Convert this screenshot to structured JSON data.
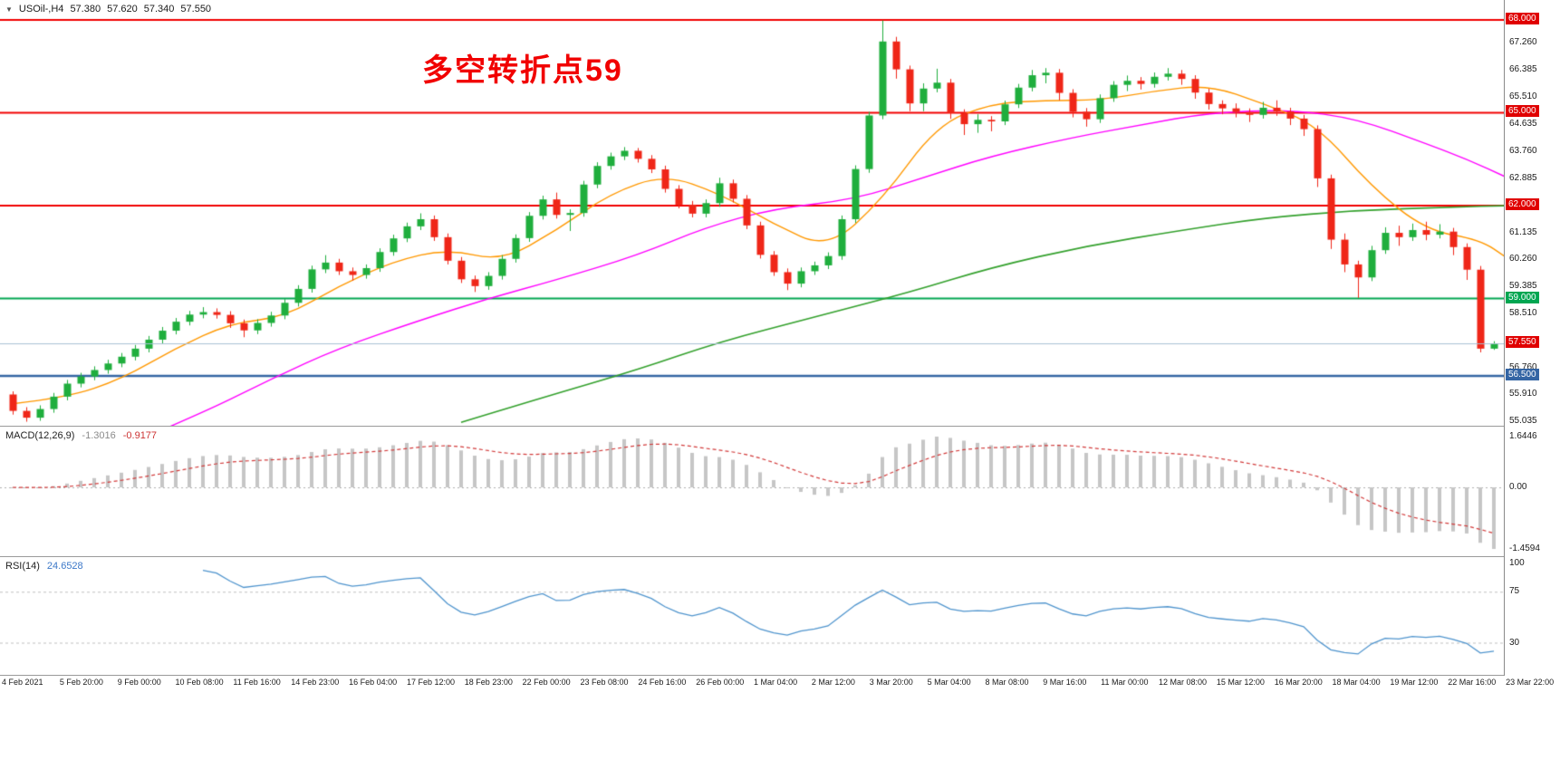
{
  "header": {
    "dropdown_icon": "▼",
    "symbol": "USOil-,H4",
    "open": "57.380",
    "high": "57.620",
    "low": "57.340",
    "close": "57.550"
  },
  "annotation": {
    "text": "多空转折点59",
    "color": "#f10000"
  },
  "chart_data": {
    "type": "candlestick",
    "title": "USOil- H4",
    "timeframe": "H4",
    "ylim": [
      54.89,
      68.64
    ],
    "x_labels": [
      "4 Feb 2021",
      "5 Feb 20:00",
      "9 Feb 00:00",
      "10 Feb 08:00",
      "11 Feb 16:00",
      "14 Feb 23:00",
      "16 Feb 04:00",
      "17 Feb 12:00",
      "18 Feb 23:00",
      "22 Feb 00:00",
      "23 Feb 08:00",
      "24 Feb 16:00",
      "26 Feb 00:00",
      "1 Mar 04:00",
      "2 Mar 12:00",
      "3 Mar 20:00",
      "5 Mar 04:00",
      "8 Mar 08:00",
      "9 Mar 16:00",
      "11 Mar 00:00",
      "12 Mar 08:00",
      "15 Mar 12:00",
      "16 Mar 20:00",
      "18 Mar 04:00",
      "19 Mar 12:00",
      "22 Mar 16:00",
      "23 Mar 22:00"
    ],
    "y_axis": {
      "tick_labels": [
        "67.260",
        "66.385",
        "65.510",
        "64.635",
        "63.760",
        "62.885",
        "61.135",
        "60.260",
        "59.385",
        "58.510",
        "56.760",
        "55.910",
        "55.035"
      ],
      "badges": [
        {
          "label": "68.000",
          "color": "#e00000"
        },
        {
          "label": "65.000",
          "color": "#e00000"
        },
        {
          "label": "62.000",
          "color": "#e00000"
        },
        {
          "label": "59.000",
          "color": "#00a651"
        },
        {
          "label": "57.550",
          "color": "#e00000"
        },
        {
          "label": "56.500",
          "color": "#3465a4"
        }
      ]
    },
    "candles": [
      [
        55.9,
        56.0,
        55.25,
        55.37
      ],
      [
        55.37,
        55.49,
        55.02,
        55.15
      ],
      [
        55.15,
        55.55,
        55.05,
        55.43
      ],
      [
        55.43,
        55.95,
        55.31,
        55.83
      ],
      [
        55.83,
        56.37,
        55.71,
        56.25
      ],
      [
        56.25,
        56.6,
        56.13,
        56.48
      ],
      [
        56.48,
        56.81,
        56.36,
        56.69
      ],
      [
        56.69,
        57.02,
        56.57,
        56.9
      ],
      [
        56.9,
        57.24,
        56.78,
        57.12
      ],
      [
        57.12,
        57.5,
        57.0,
        57.38
      ],
      [
        57.38,
        57.79,
        57.26,
        57.67
      ],
      [
        57.67,
        58.08,
        57.55,
        57.96
      ],
      [
        57.96,
        58.37,
        57.84,
        58.25
      ],
      [
        58.25,
        58.6,
        58.13,
        58.48
      ],
      [
        58.48,
        58.72,
        58.36,
        58.56
      ],
      [
        58.56,
        58.68,
        58.35,
        58.47
      ],
      [
        58.47,
        58.59,
        58.05,
        58.2
      ],
      [
        58.2,
        58.32,
        57.75,
        57.97
      ],
      [
        57.97,
        58.33,
        57.85,
        58.21
      ],
      [
        58.21,
        58.57,
        58.09,
        58.45
      ],
      [
        58.45,
        58.98,
        58.33,
        58.86
      ],
      [
        58.86,
        59.43,
        58.74,
        59.31
      ],
      [
        59.31,
        60.06,
        59.19,
        59.94
      ],
      [
        59.94,
        60.4,
        59.82,
        60.16
      ],
      [
        60.16,
        60.28,
        59.76,
        59.88
      ],
      [
        59.88,
        60.0,
        59.58,
        59.76
      ],
      [
        59.76,
        60.1,
        59.64,
        59.98
      ],
      [
        59.98,
        60.62,
        59.86,
        60.5
      ],
      [
        60.5,
        61.06,
        60.38,
        60.94
      ],
      [
        60.94,
        61.45,
        60.82,
        61.33
      ],
      [
        61.33,
        61.75,
        61.21,
        61.56
      ],
      [
        61.56,
        61.68,
        60.86,
        60.98
      ],
      [
        60.98,
        61.1,
        60.1,
        60.22
      ],
      [
        60.22,
        60.34,
        59.5,
        59.62
      ],
      [
        59.62,
        59.74,
        59.21,
        59.4
      ],
      [
        59.4,
        59.85,
        59.28,
        59.73
      ],
      [
        59.73,
        60.4,
        59.61,
        60.28
      ],
      [
        60.28,
        61.07,
        60.16,
        60.95
      ],
      [
        60.95,
        61.79,
        60.83,
        61.67
      ],
      [
        61.67,
        62.32,
        61.55,
        62.2
      ],
      [
        62.2,
        62.42,
        61.58,
        61.7
      ],
      [
        61.7,
        61.88,
        61.18,
        61.76
      ],
      [
        61.76,
        62.8,
        61.64,
        62.68
      ],
      [
        62.68,
        63.4,
        62.56,
        63.28
      ],
      [
        63.28,
        63.71,
        63.16,
        63.59
      ],
      [
        63.59,
        63.89,
        63.47,
        63.77
      ],
      [
        63.77,
        63.86,
        63.39,
        63.51
      ],
      [
        63.51,
        63.63,
        63.05,
        63.17
      ],
      [
        63.17,
        63.29,
        62.42,
        62.54
      ],
      [
        62.54,
        62.66,
        61.91,
        62.03
      ],
      [
        62.03,
        62.15,
        61.62,
        61.74
      ],
      [
        61.74,
        62.2,
        61.62,
        62.08
      ],
      [
        62.08,
        62.9,
        61.96,
        62.72
      ],
      [
        62.72,
        62.84,
        62.1,
        62.22
      ],
      [
        62.22,
        62.34,
        61.24,
        61.36
      ],
      [
        61.36,
        61.48,
        60.29,
        60.41
      ],
      [
        60.41,
        60.53,
        59.73,
        59.85
      ],
      [
        59.85,
        59.97,
        59.27,
        59.48
      ],
      [
        59.48,
        60.0,
        59.36,
        59.88
      ],
      [
        59.88,
        60.19,
        59.76,
        60.07
      ],
      [
        60.07,
        60.49,
        59.95,
        60.37
      ],
      [
        60.37,
        61.68,
        60.25,
        61.56
      ],
      [
        61.56,
        63.3,
        61.44,
        63.18
      ],
      [
        63.18,
        65.03,
        63.06,
        64.91
      ],
      [
        64.91,
        67.98,
        64.79,
        67.3
      ],
      [
        67.3,
        67.45,
        66.1,
        66.4
      ],
      [
        66.4,
        66.52,
        65.05,
        65.3
      ],
      [
        65.3,
        65.95,
        65.05,
        65.78
      ],
      [
        65.78,
        66.42,
        65.66,
        65.97
      ],
      [
        65.97,
        66.09,
        64.8,
        64.99
      ],
      [
        64.99,
        65.11,
        64.28,
        64.63
      ],
      [
        64.63,
        64.95,
        64.35,
        64.77
      ],
      [
        64.77,
        64.89,
        64.4,
        64.72
      ],
      [
        64.72,
        65.39,
        64.6,
        65.27
      ],
      [
        65.27,
        65.93,
        65.15,
        65.81
      ],
      [
        65.81,
        66.38,
        65.69,
        66.21
      ],
      [
        66.21,
        66.44,
        65.95,
        66.29
      ],
      [
        66.29,
        66.41,
        65.4,
        65.64
      ],
      [
        65.64,
        65.76,
        64.85,
        65.03
      ],
      [
        65.03,
        65.15,
        64.55,
        64.79
      ],
      [
        64.79,
        65.59,
        64.67,
        65.47
      ],
      [
        65.47,
        66.02,
        65.35,
        65.9
      ],
      [
        65.9,
        66.2,
        65.7,
        66.03
      ],
      [
        66.03,
        66.15,
        65.75,
        65.93
      ],
      [
        65.93,
        66.3,
        65.81,
        66.16
      ],
      [
        66.16,
        66.44,
        66.04,
        66.26
      ],
      [
        66.26,
        66.38,
        65.9,
        66.09
      ],
      [
        66.09,
        66.21,
        65.45,
        65.65
      ],
      [
        65.65,
        65.77,
        65.1,
        65.28
      ],
      [
        65.28,
        65.4,
        64.95,
        65.14
      ],
      [
        65.14,
        65.3,
        64.85,
        65.02
      ],
      [
        65.02,
        65.14,
        64.7,
        64.93
      ],
      [
        64.93,
        65.35,
        64.81,
        65.16
      ],
      [
        65.16,
        65.4,
        64.9,
        65.04
      ],
      [
        65.04,
        65.16,
        64.6,
        64.81
      ],
      [
        64.81,
        64.93,
        64.25,
        64.47
      ],
      [
        64.47,
        64.59,
        62.6,
        62.88
      ],
      [
        62.88,
        63.0,
        60.6,
        60.9
      ],
      [
        60.9,
        61.1,
        59.85,
        60.1
      ],
      [
        60.1,
        60.22,
        59.02,
        59.68
      ],
      [
        59.68,
        60.7,
        59.56,
        60.56
      ],
      [
        60.56,
        61.3,
        60.44,
        61.12
      ],
      [
        61.12,
        61.35,
        60.7,
        60.98
      ],
      [
        60.98,
        61.42,
        60.86,
        61.21
      ],
      [
        61.21,
        61.48,
        60.88,
        61.06
      ],
      [
        61.06,
        61.4,
        60.94,
        61.16
      ],
      [
        61.16,
        61.28,
        60.4,
        60.66
      ],
      [
        60.66,
        60.78,
        59.6,
        59.93
      ],
      [
        59.93,
        60.05,
        57.26,
        57.38
      ],
      [
        57.38,
        57.62,
        57.34,
        57.55
      ]
    ],
    "overlays": {
      "hlines": [
        {
          "price": 68.0,
          "label": "68.000",
          "color": "#f10000",
          "width": 2
        },
        {
          "price": 65.0,
          "label": "65.000",
          "color": "#f10000",
          "width": 2
        },
        {
          "price": 62.0,
          "label": "62.000",
          "color": "#f10000",
          "width": 2
        },
        {
          "price": 59.0,
          "label": "59.000",
          "color": "#00a651",
          "width": 2
        },
        {
          "price": 56.5,
          "label": "56.500",
          "color": "#3465a4",
          "width": 2.5
        }
      ],
      "current_price": {
        "price": 57.55,
        "label": "57.550",
        "line_color": "#a6bfd4",
        "badge_color": "#e00000"
      },
      "moving_averages": [
        {
          "name": "ma-slow-green",
          "color": "#33a02c",
          "width": 1.6,
          "points": [
            [
              33,
              55.0
            ],
            [
              39,
              55.8
            ],
            [
              46,
              56.7
            ],
            [
              52,
              57.6
            ],
            [
              59,
              58.4
            ],
            [
              66,
              59.2
            ],
            [
              72,
              60.0
            ],
            [
              79,
              60.7
            ],
            [
              86,
              61.2
            ],
            [
              92,
              61.6
            ],
            [
              99,
              61.85
            ],
            [
              106,
              61.95
            ],
            [
              110,
              62.0
            ]
          ]
        },
        {
          "name": "ma-mid-magenta",
          "color": "#ff00ff",
          "width": 1.4,
          "points": [
            [
              8,
              54.2
            ],
            [
              14,
              55.3
            ],
            [
              19,
              56.4
            ],
            [
              24,
              57.4
            ],
            [
              30,
              58.3
            ],
            [
              35,
              59.0
            ],
            [
              40,
              59.6
            ],
            [
              46,
              60.4
            ],
            [
              51,
              61.3
            ],
            [
              56,
              61.9
            ],
            [
              62,
              62.2
            ],
            [
              67,
              62.9
            ],
            [
              72,
              63.6
            ],
            [
              78,
              64.2
            ],
            [
              83,
              64.6
            ],
            [
              88,
              65.0
            ],
            [
              94,
              65.1
            ],
            [
              99,
              64.8
            ],
            [
              104,
              64.0
            ],
            [
              107,
              63.5
            ],
            [
              110,
              62.9
            ]
          ]
        },
        {
          "name": "ma-fast-orange",
          "color": "#ff9800",
          "width": 1.4,
          "points": [
            [
              0,
              55.6
            ],
            [
              4,
              55.8
            ],
            [
              8,
              56.4
            ],
            [
              12,
              57.4
            ],
            [
              16,
              58.2
            ],
            [
              20,
              58.4
            ],
            [
              24,
              59.4
            ],
            [
              28,
              60.2
            ],
            [
              32,
              60.6
            ],
            [
              36,
              60.2
            ],
            [
              40,
              61.2
            ],
            [
              44,
              62.4
            ],
            [
              48,
              63.0
            ],
            [
              52,
              62.4
            ],
            [
              56,
              61.4
            ],
            [
              60,
              60.6
            ],
            [
              64,
              62.2
            ],
            [
              68,
              64.6
            ],
            [
              72,
              65.3
            ],
            [
              76,
              65.4
            ],
            [
              80,
              65.4
            ],
            [
              84,
              65.7
            ],
            [
              88,
              65.9
            ],
            [
              92,
              65.3
            ],
            [
              96,
              64.6
            ],
            [
              100,
              62.6
            ],
            [
              104,
              61.2
            ],
            [
              108,
              60.9
            ],
            [
              110,
              60.3
            ]
          ]
        }
      ]
    },
    "indicators": [
      {
        "name": "MACD",
        "label": "MACD(12,26,9)",
        "current_main": "-1.3016",
        "current_signal": "-0.9177",
        "params": [
          12,
          26,
          9
        ],
        "axis_labels": [
          "1.6446",
          "0.00",
          "-1.4594"
        ],
        "bar_color": "#c6c6c6",
        "signal_color": "#d23b3b"
      },
      {
        "name": "RSI",
        "label": "RSI(14)",
        "current": "24.6528",
        "period": 14,
        "axis_labels": [
          "100",
          "75",
          "30"
        ],
        "levels": [
          75,
          30
        ],
        "line_color": "#4f94cd"
      }
    ],
    "candle_colors": {
      "up": "#1fae3d",
      "down": "#ef2618"
    }
  }
}
